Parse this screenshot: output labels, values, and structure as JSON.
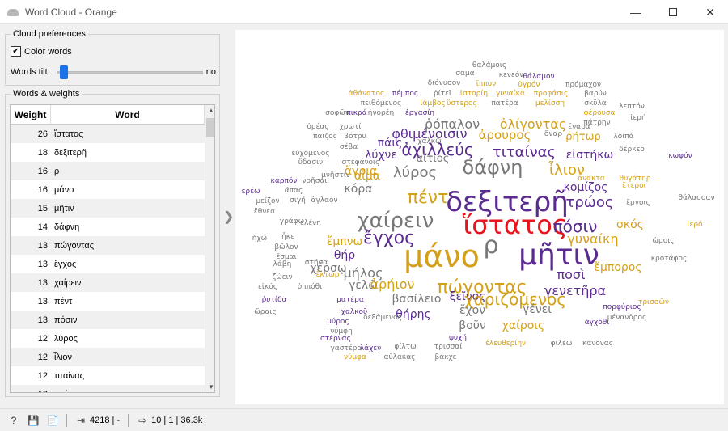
{
  "window": {
    "title": "Word Cloud - Orange"
  },
  "preferences": {
    "group_title": "Cloud preferences",
    "color_words_label": "Color words",
    "color_words_checked": true,
    "words_tilt_label": "Words tilt:",
    "words_tilt_value": "no"
  },
  "words": {
    "group_title": "Words & weights",
    "col_weight": "Weight",
    "col_word": "Word",
    "rows": [
      {
        "weight": "26",
        "word": "ἵστατος"
      },
      {
        "weight": "18",
        "word": "δεξιτερῆ"
      },
      {
        "weight": "16",
        "word": "ρ"
      },
      {
        "weight": "16",
        "word": "μάνο"
      },
      {
        "weight": "15",
        "word": "μῆτιν"
      },
      {
        "weight": "14",
        "word": "δάφνη"
      },
      {
        "weight": "13",
        "word": "πώγοντας"
      },
      {
        "weight": "13",
        "word": "ἔγχος"
      },
      {
        "weight": "13",
        "word": "χαίρειν"
      },
      {
        "weight": "13",
        "word": "πέντ"
      },
      {
        "weight": "13",
        "word": "πόσιν"
      },
      {
        "weight": "12",
        "word": "λύρος"
      },
      {
        "weight": "12",
        "word": "ἶλιον"
      },
      {
        "weight": "12",
        "word": "τιταίνας"
      },
      {
        "weight": "12",
        "word": "τρώος"
      }
    ]
  },
  "status": {
    "input_count": "4218 | -",
    "output_info": "10 | 1 | 36.3k"
  },
  "cloud": {
    "colors": [
      "#5b2c8f",
      "#d4a017",
      "#777777"
    ],
    "highlight_color": "#e8141e",
    "words": [
      {
        "t": "θαλάμοις",
        "c": 2
      },
      {
        "t": "σᾶμα",
        "c": 2
      },
      {
        "t": "κενεόν",
        "c": 2
      },
      {
        "t": "θάλαμον",
        "c": 0
      },
      {
        "t": "διόνυσον",
        "c": 2
      },
      {
        "t": "ἵππον",
        "c": 1
      },
      {
        "t": "ὑγρόν",
        "c": 1
      },
      {
        "t": "πρόμαχον",
        "c": 2
      },
      {
        "t": "ἀθάνατος",
        "c": 1
      },
      {
        "t": "πέμπος",
        "c": 0
      },
      {
        "t": "ῥίτεῖ",
        "c": 2
      },
      {
        "t": "ἰστορίη",
        "c": 1
      },
      {
        "t": "γυναίκα",
        "c": 1
      },
      {
        "t": "προφάσις",
        "c": 1
      },
      {
        "t": "βαρύν",
        "c": 2
      },
      {
        "t": "πειθόμενος",
        "c": 2
      },
      {
        "t": "ἰάμβος",
        "c": 1
      },
      {
        "t": "ὕστερος",
        "c": 1
      },
      {
        "t": "πατέρα",
        "c": 2
      },
      {
        "t": "μελίσση",
        "c": 1
      },
      {
        "t": "σκῦλα",
        "c": 2
      },
      {
        "t": "σοφῶν",
        "c": 2
      },
      {
        "t": "πικρά",
        "c": 0
      },
      {
        "t": "ἠνορέη",
        "c": 2
      },
      {
        "t": "ἐργασίη",
        "c": 0
      },
      {
        "t": "φέρουσα",
        "c": 1
      },
      {
        "t": "πάτρην",
        "c": 2
      },
      {
        "t": "λεπτόν",
        "c": 2
      },
      {
        "t": "ὀρέας",
        "c": 2
      },
      {
        "t": "χρωτί",
        "c": 2
      },
      {
        "t": "ῥόπαλον",
        "c": 2
      },
      {
        "t": "ὀλίγοντας",
        "c": 1
      },
      {
        "t": "ἔναρα",
        "c": 2
      },
      {
        "t": "παῖζος",
        "c": 2
      },
      {
        "t": "βότρυ",
        "c": 2
      },
      {
        "t": "φθιμένοισιν",
        "c": 0
      },
      {
        "t": "ἀρουρος",
        "c": 1
      },
      {
        "t": "ῥήτωρ",
        "c": 1
      },
      {
        "t": "ἀχιλλεύς",
        "c": 0
      },
      {
        "t": "τιταίνας",
        "c": 0
      },
      {
        "t": "ὄναρ",
        "c": 2
      },
      {
        "t": "λοιπά",
        "c": 2
      },
      {
        "t": "ἱερή",
        "c": 2
      },
      {
        "t": "εὐχόμενος",
        "c": 2
      },
      {
        "t": "σέβα",
        "c": 2
      },
      {
        "t": "πάις",
        "c": 0
      },
      {
        "t": "χαλκῷ",
        "c": 2
      },
      {
        "t": "λύχνε",
        "c": 0
      },
      {
        "t": "αἴτιος",
        "c": 2
      },
      {
        "t": "δάφνη",
        "c": 2
      },
      {
        "t": "εἰστήκω",
        "c": 0
      },
      {
        "t": "ὕδασιν",
        "c": 2
      },
      {
        "t": "στεφάνοις",
        "c": 2
      },
      {
        "t": "ἄγρια",
        "c": 1
      },
      {
        "t": "ἶλιον",
        "c": 1
      },
      {
        "t": "δέρκεο",
        "c": 2
      },
      {
        "t": "κωφόν",
        "c": 0
      },
      {
        "t": "λύρος",
        "c": 2
      },
      {
        "t": "μνῆστιν",
        "c": 2
      },
      {
        "t": "ἀνακτα",
        "c": 1
      },
      {
        "t": "θυγάτηρ",
        "c": 1
      },
      {
        "t": "καρπόν",
        "c": 0
      },
      {
        "t": "νοῆσαι",
        "c": 2
      },
      {
        "t": "αἷμα",
        "c": 1
      },
      {
        "t": "κομίζος",
        "c": 0
      },
      {
        "t": "ἕτεροι",
        "c": 1
      },
      {
        "t": "ἐρέω",
        "c": 0
      },
      {
        "t": "ἅπας",
        "c": 2
      },
      {
        "t": "κόρα",
        "c": 2
      },
      {
        "t": "τρώος",
        "c": 0
      },
      {
        "t": "θάλασσαν",
        "c": 2
      },
      {
        "t": "μείζον",
        "c": 2
      },
      {
        "t": "σιγή",
        "c": 2
      },
      {
        "t": "ἀγλαόν",
        "c": 2
      },
      {
        "t": "πέντ",
        "c": 1
      },
      {
        "t": "ἔργοις",
        "c": 2
      },
      {
        "t": "ἔθνεα",
        "c": 2
      },
      {
        "t": "δεξιτερῆ",
        "c": 0
      },
      {
        "t": "γράφω",
        "c": 2
      },
      {
        "t": "ἐλένη",
        "c": 2
      },
      {
        "t": "χαίρειν",
        "c": 2
      },
      {
        "t": "ἵστατος",
        "c": 3
      },
      {
        "t": "πόσιν",
        "c": 0
      },
      {
        "t": "σκός",
        "c": 1
      },
      {
        "t": "ἱερό",
        "c": 1
      },
      {
        "t": "ἠχώ",
        "c": 2
      },
      {
        "t": "ἦκε",
        "c": 2
      },
      {
        "t": "ἔγχος",
        "c": 0
      },
      {
        "t": "γυναίκη",
        "c": 1
      },
      {
        "t": "ὠμοις",
        "c": 2
      },
      {
        "t": "βῶλον",
        "c": 2
      },
      {
        "t": "ἔσμαι",
        "c": 2
      },
      {
        "t": "ἔμπνω",
        "c": 1
      },
      {
        "t": "θήρ",
        "c": 0
      },
      {
        "t": "ρ",
        "c": 2
      },
      {
        "t": "χέρσῳ",
        "c": 2
      },
      {
        "t": "μάνο",
        "c": 1
      },
      {
        "t": "μῆτιν",
        "c": 0
      },
      {
        "t": "λάβη",
        "c": 2
      },
      {
        "t": "στήσα",
        "c": 2
      },
      {
        "t": "μήλος",
        "c": 2
      },
      {
        "t": "ἔμπορος",
        "c": 1
      },
      {
        "t": "κροτάφος",
        "c": 2
      },
      {
        "t": "ζώειν",
        "c": 2
      },
      {
        "t": "ἕκτωρ",
        "c": 1
      },
      {
        "t": "γελῶ",
        "c": 2
      },
      {
        "t": "ποσὶ",
        "c": 0
      },
      {
        "t": "εἰκός",
        "c": 2
      },
      {
        "t": "ὀππόθι",
        "c": 2
      },
      {
        "t": "ἀρήιον",
        "c": 1
      },
      {
        "t": "πώγοντας",
        "c": 1
      },
      {
        "t": "γενετῆρα",
        "c": 0
      },
      {
        "t": "ῥυτίδα",
        "c": 0
      },
      {
        "t": "ματέρα",
        "c": 0
      },
      {
        "t": "βασίλειο",
        "c": 2
      },
      {
        "t": "ξεῖνος",
        "c": 0
      },
      {
        "t": "χαριζόμενος",
        "c": 1
      },
      {
        "t": "τρισσῶν",
        "c": 1
      },
      {
        "t": "ὥραις",
        "c": 2
      },
      {
        "t": "χαλκοῦ",
        "c": 0
      },
      {
        "t": "θήρης",
        "c": 0
      },
      {
        "t": "ἔχον",
        "c": 2
      },
      {
        "t": "γένει",
        "c": 2
      },
      {
        "t": "πορφύριος",
        "c": 0
      },
      {
        "t": "μύρος",
        "c": 0
      },
      {
        "t": "δεξάμενος",
        "c": 2
      },
      {
        "t": "ἀγχόθι",
        "c": 0
      },
      {
        "t": "νύμφη",
        "c": 2
      },
      {
        "t": "χαίροις",
        "c": 1
      },
      {
        "t": "βοῦν",
        "c": 2
      },
      {
        "t": "μένανδρος",
        "c": 2
      },
      {
        "t": "στέρνας",
        "c": 0
      },
      {
        "t": "λάχεν",
        "c": 0
      },
      {
        "t": "ψυχή",
        "c": 0
      },
      {
        "t": "γαστέρα",
        "c": 2
      },
      {
        "t": "φίλτω",
        "c": 2
      },
      {
        "t": "τρισσαί",
        "c": 2
      },
      {
        "t": "ἐλευθερίην",
        "c": 1
      },
      {
        "t": "φιλέω",
        "c": 2
      },
      {
        "t": "κανόνας",
        "c": 2
      },
      {
        "t": "νύμφα",
        "c": 1
      },
      {
        "t": "αὐλακας",
        "c": 2
      },
      {
        "t": "βάκχε",
        "c": 2
      }
    ]
  }
}
